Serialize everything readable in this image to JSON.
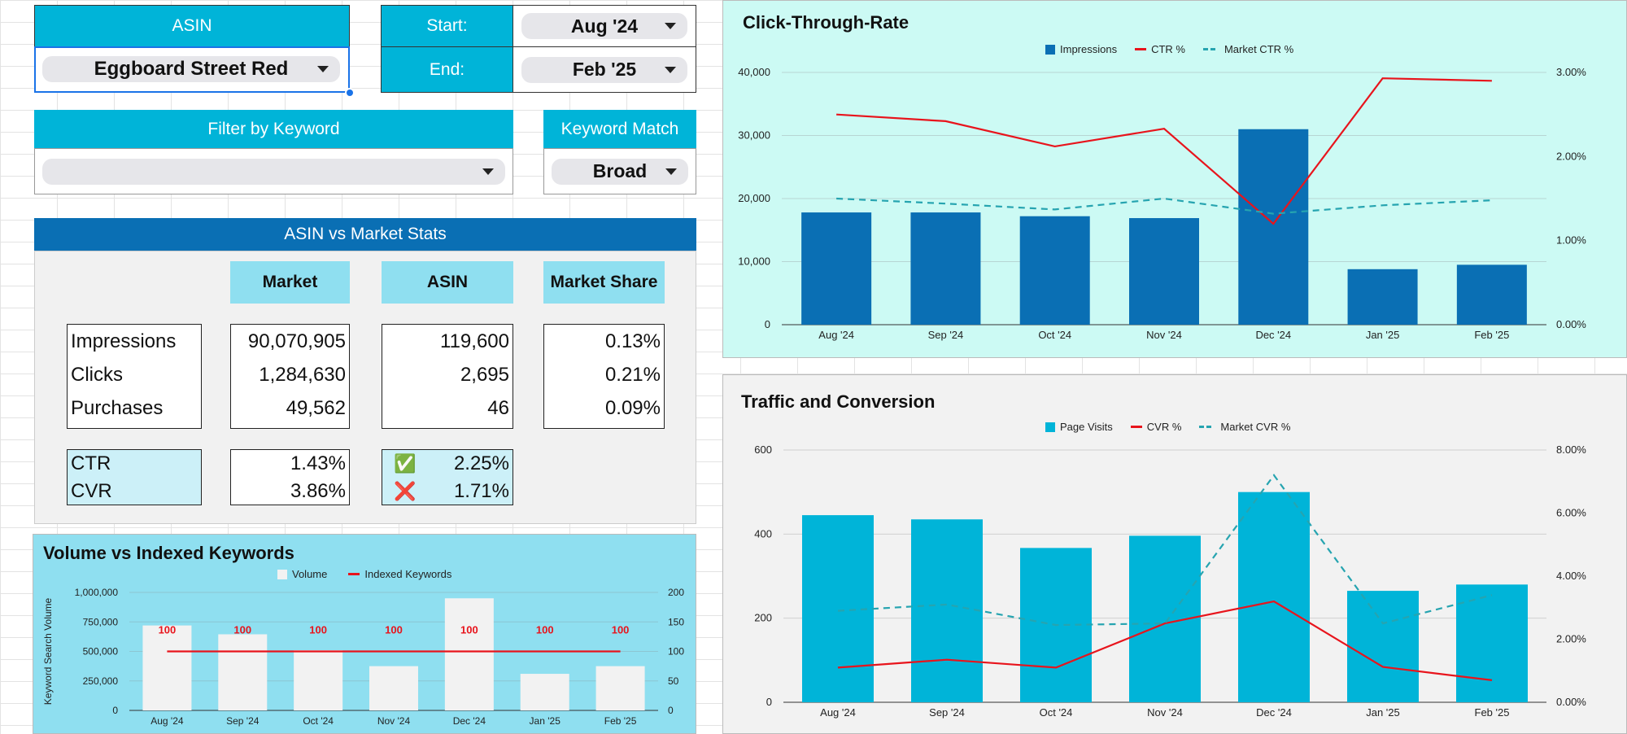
{
  "controls": {
    "asin_label": "ASIN",
    "asin_value": "Eggboard Street Red",
    "start_label": "Start:",
    "start_value": "Aug '24",
    "end_label": "End:",
    "end_value": "Feb '25",
    "filter_label": "Filter by Keyword",
    "filter_value": "",
    "match_label": "Keyword Match",
    "match_value": "Broad"
  },
  "stats": {
    "title": "ASIN vs Market Stats",
    "col_market": "Market",
    "col_asin": "ASIN",
    "col_share": "Market Share",
    "rows": [
      {
        "label": "Impressions",
        "market": "90,070,905",
        "asin": "119,600",
        "share": "0.13%"
      },
      {
        "label": "Clicks",
        "market": "1,284,630",
        "asin": "2,695",
        "share": "0.21%"
      },
      {
        "label": "Purchases",
        "market": "49,562",
        "asin": "46",
        "share": "0.09%"
      }
    ],
    "rates": [
      {
        "label": "CTR",
        "market": "1.43%",
        "asin": "2.25%",
        "status_icon": "✅",
        "status": "check-icon"
      },
      {
        "label": "CVR",
        "market": "3.86%",
        "asin": "1.71%",
        "status_icon": "❌",
        "status": "cross-icon"
      }
    ]
  },
  "colors": {
    "impressions": "#0a6fb4",
    "ctr": "#e8141c",
    "market_line": "#26a4b0",
    "page_visits": "#00b4d8",
    "volume": "#f2f2f2",
    "indexed": "#e8141c"
  },
  "chart_data": [
    {
      "id": "ctr",
      "type": "bar",
      "title": "Click-Through-Rate",
      "categories": [
        "Aug '24",
        "Sep '24",
        "Oct '24",
        "Nov '24",
        "Dec '24",
        "Jan '25",
        "Feb '25"
      ],
      "series": [
        {
          "name": "Impressions",
          "type": "bar",
          "axis": "left",
          "values": [
            17800,
            17800,
            17200,
            16900,
            31000,
            8800,
            9500
          ]
        },
        {
          "name": "CTR %",
          "type": "line",
          "axis": "right",
          "values": [
            2.5,
            2.42,
            2.12,
            2.33,
            1.2,
            2.93,
            2.9
          ]
        },
        {
          "name": "Market CTR %",
          "type": "dashed",
          "axis": "right",
          "values": [
            1.5,
            1.44,
            1.37,
            1.5,
            1.32,
            1.42,
            1.48
          ]
        }
      ],
      "ylim_left": [
        0,
        40000
      ],
      "yticks_left": [
        "0",
        "10,000",
        "20,000",
        "30,000",
        "40,000"
      ],
      "ylim_right": [
        0,
        3
      ],
      "yticks_right": [
        "0.00%",
        "1.00%",
        "2.00%",
        "3.00%"
      ]
    },
    {
      "id": "traffic",
      "type": "bar",
      "title": "Traffic and Conversion",
      "categories": [
        "Aug '24",
        "Sep '24",
        "Oct '24",
        "Nov '24",
        "Dec '24",
        "Jan '25",
        "Feb '25"
      ],
      "series": [
        {
          "name": "Page Visits",
          "type": "bar",
          "axis": "left",
          "values": [
            445,
            435,
            367,
            396,
            500,
            265,
            280
          ]
        },
        {
          "name": "CVR %",
          "type": "line",
          "axis": "right",
          "values": [
            1.1,
            1.35,
            1.1,
            2.5,
            3.2,
            1.12,
            0.7
          ]
        },
        {
          "name": "Market CVR %",
          "type": "dashed",
          "axis": "right",
          "values": [
            2.9,
            3.1,
            2.45,
            2.5,
            7.2,
            2.5,
            3.4
          ]
        }
      ],
      "ylim_left": [
        0,
        600
      ],
      "yticks_left": [
        "0",
        "200",
        "400",
        "600"
      ],
      "ylim_right": [
        0,
        8
      ],
      "yticks_right": [
        "0.00%",
        "2.00%",
        "4.00%",
        "6.00%",
        "8.00%"
      ]
    },
    {
      "id": "volume",
      "type": "bar",
      "title": "Volume vs Indexed Keywords",
      "ylabel": "Keyword Search Volume",
      "categories": [
        "Aug '24",
        "Sep '24",
        "Oct '24",
        "Nov '24",
        "Dec '24",
        "Jan '25",
        "Feb '25"
      ],
      "series": [
        {
          "name": "Volume",
          "type": "bar",
          "axis": "left",
          "values": [
            720000,
            645000,
            510000,
            375000,
            950000,
            310000,
            375000
          ]
        },
        {
          "name": "Indexed Keywords",
          "type": "line",
          "axis": "right",
          "values": [
            100,
            100,
            100,
            100,
            100,
            100,
            100
          ]
        }
      ],
      "data_labels": [
        "100",
        "100",
        "100",
        "100",
        "100",
        "100",
        "100"
      ],
      "ylim_left": [
        0,
        1000000
      ],
      "yticks_left": [
        "0",
        "250,000",
        "500,000",
        "750,000",
        "1,000,000"
      ],
      "ylim_right": [
        0,
        200
      ],
      "yticks_right": [
        "0",
        "50",
        "100",
        "150",
        "200"
      ]
    }
  ]
}
